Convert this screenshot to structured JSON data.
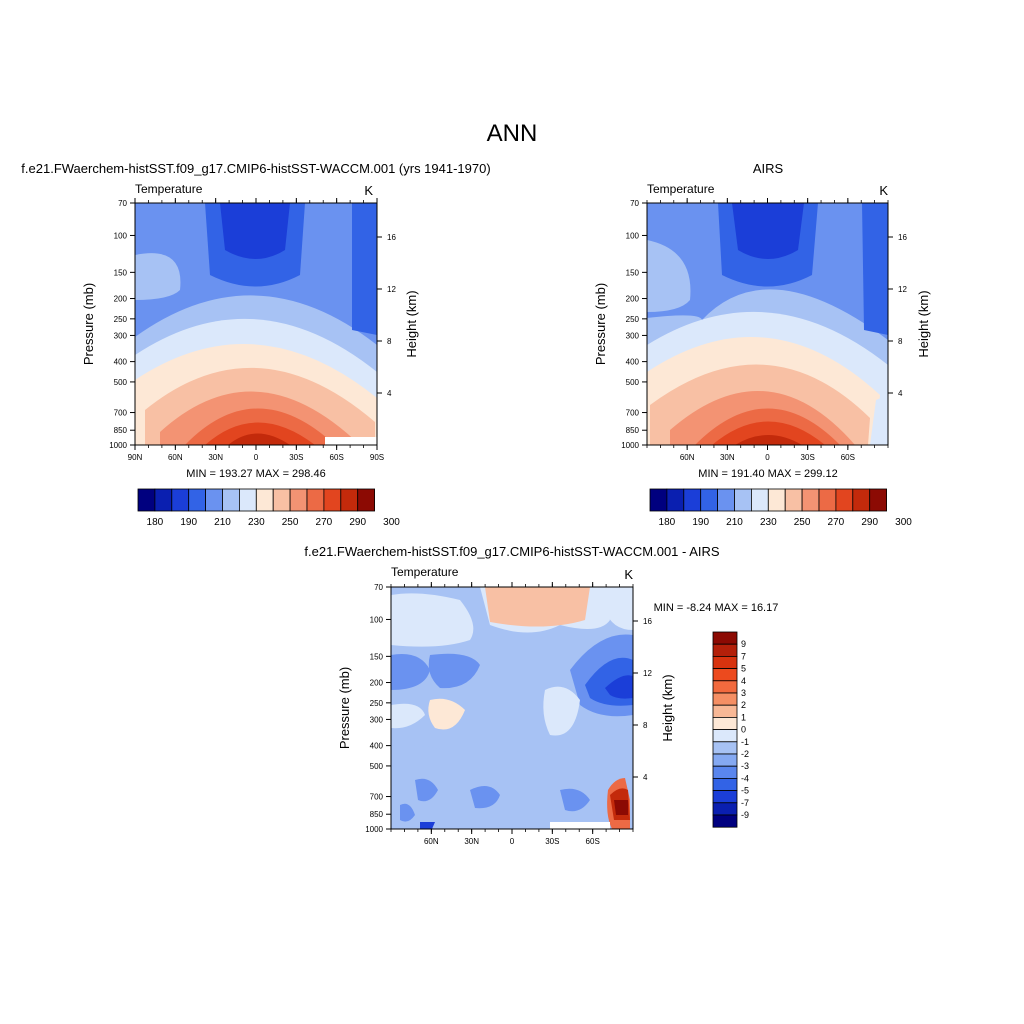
{
  "figure": {
    "title": "ANN"
  },
  "chart_data": [
    {
      "type": "heatmap",
      "title": "f.e21.FWaerchem-histSST.f09_g17.CMIP6-histSST-WACCM.001 (yrs 1941-1970)",
      "left_label": "Temperature",
      "units": "K",
      "ylabel": "Pressure (mb)",
      "y2label": "Height (km)",
      "y_ticks": [
        "70",
        "100",
        "150",
        "200",
        "250",
        "300",
        "400",
        "500",
        "700",
        "850",
        "1000"
      ],
      "y2_ticks": [
        "4",
        "8",
        "12",
        "16"
      ],
      "x_ticks": [
        "90N",
        "60N",
        "30N",
        "0",
        "30S",
        "60S",
        "90S"
      ],
      "stats_text": "MIN = 193.27  MAX = 298.46",
      "min": 193.27,
      "max": 298.46,
      "colorbar_ticks": [
        "180",
        "190",
        "210",
        "230",
        "250",
        "270",
        "290",
        "300"
      ]
    },
    {
      "type": "heatmap",
      "title": "AIRS",
      "left_label": "Temperature",
      "units": "K",
      "ylabel": "Pressure (mb)",
      "y2label": "Height (km)",
      "y_ticks": [
        "70",
        "100",
        "150",
        "200",
        "250",
        "300",
        "400",
        "500",
        "700",
        "850",
        "1000"
      ],
      "y2_ticks": [
        "4",
        "8",
        "12",
        "16"
      ],
      "x_ticks": [
        "60N",
        "30N",
        "0",
        "30S",
        "60S"
      ],
      "stats_text": "MIN = 191.40  MAX = 299.12",
      "min": 191.4,
      "max": 299.12,
      "colorbar_ticks": [
        "180",
        "190",
        "210",
        "230",
        "250",
        "270",
        "290",
        "300"
      ]
    },
    {
      "type": "heatmap",
      "title": "f.e21.FWaerchem-histSST.f09_g17.CMIP6-histSST-WACCM.001 - AIRS",
      "left_label": "Temperature",
      "units": "K",
      "ylabel": "Pressure (mb)",
      "y2label": "Height (km)",
      "y_ticks": [
        "70",
        "100",
        "150",
        "200",
        "250",
        "300",
        "400",
        "500",
        "700",
        "850",
        "1000"
      ],
      "y2_ticks": [
        "4",
        "8",
        "12",
        "16"
      ],
      "x_ticks": [
        "60N",
        "30N",
        "0",
        "30S",
        "60S"
      ],
      "stats_text": "MIN =  -8.24  MAX =  16.17",
      "min": -8.24,
      "max": 16.17,
      "colorbar_ticks": [
        "9",
        "7",
        "5",
        "4",
        "3",
        "2",
        "1",
        "0",
        "-1",
        "-2",
        "-3",
        "-4",
        "-5",
        "-7",
        "-9"
      ]
    }
  ],
  "palette": [
    "#00007f",
    "#0a1fb0",
    "#1b3ed8",
    "#3263e6",
    "#6a92f0",
    "#a7c2f4",
    "#dbe8fb",
    "#fde8d6",
    "#f8c0a4",
    "#f39373",
    "#ec6a45",
    "#e2451f",
    "#c32a0b",
    "#8c0a03"
  ]
}
